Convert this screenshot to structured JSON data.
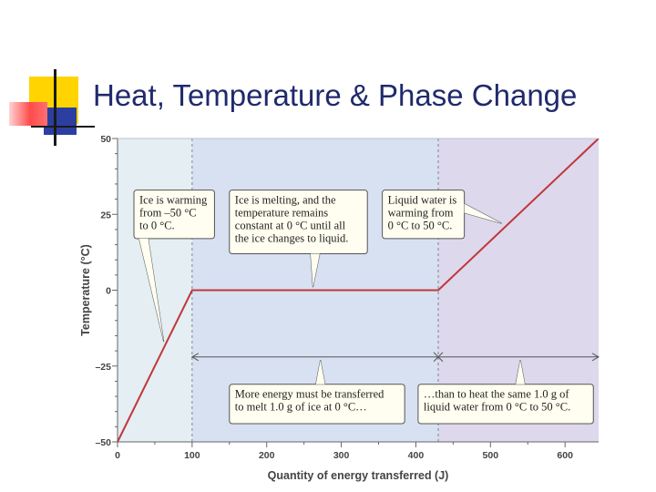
{
  "slide": {
    "title": "Heat, Temperature & Phase Change"
  },
  "colors": {
    "title": "#202a6b",
    "line": "#c0373c",
    "region_ice": "#e4eef3",
    "region_melt": "#d8e1f2",
    "region_water": "#ddd8ec",
    "callout_bg": "#fffef0"
  },
  "chart_data": {
    "type": "line",
    "title": "",
    "xlabel": "Quantity of energy transferred (J)",
    "ylabel": "Temperature (°C)",
    "xlim": [
      0,
      645
    ],
    "ylim": [
      -50,
      50
    ],
    "xticks": [
      0,
      100,
      200,
      300,
      400,
      500,
      600
    ],
    "yticks": [
      -50,
      -25,
      0,
      25,
      50
    ],
    "ytick_labels": [
      "–50",
      "–25",
      "0",
      "25",
      "50"
    ],
    "grid": false,
    "series": [
      {
        "x": [
          0,
          100,
          430,
          645
        ],
        "y": [
          -50,
          0,
          0,
          50
        ]
      }
    ],
    "regions": [
      {
        "from": 0,
        "to": 100
      },
      {
        "from": 100,
        "to": 430
      },
      {
        "from": 430,
        "to": 645
      }
    ],
    "dividers": [
      100,
      430
    ],
    "span_arrow": {
      "from": 100,
      "mid": 430,
      "to": 645,
      "y": -22
    },
    "annotations": [
      {
        "name": "ice-warming-callout",
        "lines": [
          "Ice is warming",
          "from –50 °C",
          "to 0 °C."
        ],
        "box": {
          "x0": 22,
          "x1": 130,
          "y0": 33,
          "y1": 17
        },
        "pointer": {
          "base_x": 35,
          "base_y": 17,
          "tip_x": 62,
          "tip_y": -17
        }
      },
      {
        "name": "ice-melting-callout",
        "lines": [
          "Ice is melting, and the",
          "temperature remains",
          "constant at 0 °C until all",
          "the ice changes to liquid."
        ],
        "box": {
          "x0": 150,
          "x1": 335,
          "y0": 33,
          "y1": 12
        },
        "pointer": {
          "base_x": 265,
          "base_y": 12,
          "tip_x": 262,
          "tip_y": 1
        }
      },
      {
        "name": "liquid-warming-callout",
        "lines": [
          "Liquid water is",
          "warming from",
          "0 °C to 50 °C."
        ],
        "box": {
          "x0": 355,
          "x1": 465,
          "y0": 33,
          "y1": 17
        },
        "pointer": {
          "base_x": 465,
          "base_y": 27,
          "tip_x": 515,
          "tip_y": 22
        }
      },
      {
        "name": "melt-energy-callout",
        "lines": [
          "More energy must be transferred",
          "to melt 1.0 g of ice at 0 °C…"
        ],
        "box": {
          "x0": 150,
          "x1": 385,
          "y0": -31,
          "y1": -44
        },
        "pointer": {
          "base_x": 272,
          "base_y": -31,
          "tip_x": 272,
          "tip_y": -23
        }
      },
      {
        "name": "heat-water-callout",
        "lines": [
          "…than to heat the same 1.0 g of",
          "liquid water from 0 °C to 50 °C."
        ],
        "box": {
          "x0": 403,
          "x1": 638,
          "y0": -31,
          "y1": -44
        },
        "pointer": {
          "base_x": 540,
          "base_y": -31,
          "tip_x": 540,
          "tip_y": -23
        }
      }
    ]
  }
}
